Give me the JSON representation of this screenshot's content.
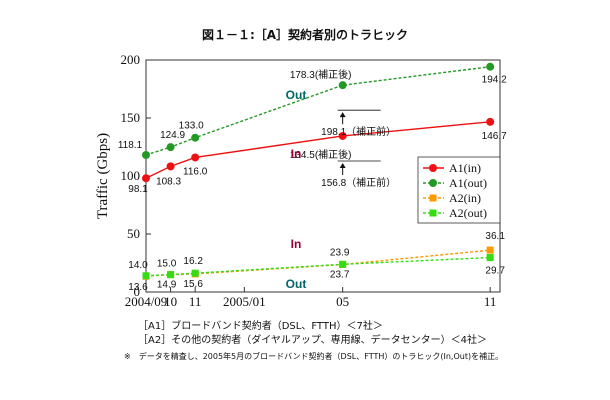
{
  "chart_data": {
    "type": "line",
    "title": "図１－１:［A］契約者別のトラヒック",
    "ylabel": "Traffic (Gbps)",
    "xlabel": "",
    "ylim": [
      0,
      200
    ],
    "y_ticks": [
      "0",
      "50",
      "100",
      "150",
      "200"
    ],
    "x_ticks": [
      {
        "label": "2004/09",
        "m": 0
      },
      {
        "label": "10",
        "m": 1
      },
      {
        "label": "11",
        "m": 2
      },
      {
        "label": "2005/01",
        "m": 4
      },
      {
        "label": "05",
        "m": 8
      },
      {
        "label": "11",
        "m": 14
      }
    ],
    "x_months": [
      0,
      1,
      2,
      8,
      14
    ],
    "series": [
      {
        "name": "A1(in)",
        "color": "#ee1111",
        "dash": false,
        "marker": "circle",
        "values": [
          98.1,
          108.3,
          116.0,
          134.5,
          146.7
        ],
        "labels": [
          "98.1",
          "108.3",
          "116.0",
          "134.5(補正後)",
          "146.7"
        ]
      },
      {
        "name": "A1(out)",
        "color": "#229922",
        "dash": true,
        "marker": "circle",
        "values": [
          118.1,
          124.9,
          133.0,
          178.3,
          194.2
        ],
        "labels": [
          "118.1",
          "124.9",
          "133.0",
          "178.3(補正後)",
          "194.2"
        ]
      },
      {
        "name": "A2(in)",
        "color": "#ff9900",
        "dash": true,
        "marker": "square",
        "values": [
          13.6,
          14.9,
          15.6,
          23.7,
          36.1
        ],
        "labels": [
          "13.6",
          "14.9",
          "15.6",
          "23.7",
          "36.1"
        ]
      },
      {
        "name": "A2(out)",
        "color": "#33dd11",
        "dash": true,
        "marker": "square",
        "values": [
          14.0,
          15.0,
          16.2,
          23.9,
          29.7
        ],
        "labels": [
          "14.0",
          "15.0",
          "16.2",
          "23.9",
          "29.7"
        ]
      }
    ],
    "annotations": {
      "out_upper": "Out",
      "in_upper": "In",
      "in_lower": "In",
      "out_lower": "Out",
      "pre_correction_out": "198.1（補正前）",
      "pre_correction_in": "156.8（補正前）"
    },
    "legend_position": "right"
  },
  "notes": {
    "a1": "［A1］ブロードバンド契約者（DSL、FTTH）＜7社＞",
    "a2": "［A2］その他の契約者（ダイヤルアップ、専用線、データセンター）＜4社＞",
    "footnote": "※　データを精査し、2005年5月のブロードバンド契約者（DSL、FTTH）のトラヒック(In,Out)を補正。"
  }
}
